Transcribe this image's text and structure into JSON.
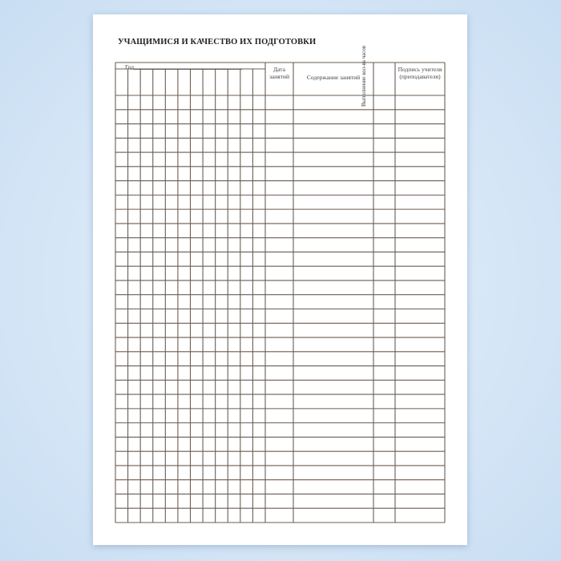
{
  "document": {
    "title": "УЧАЩИМИСЯ И КАЧЕСТВО ИХ ПОДГОТОВКИ",
    "table": {
      "year_label": "Год",
      "columns": {
        "date": "Дата занятий",
        "content": "Содержание занятий",
        "hours": "Выполнение кол-ва часов",
        "signature": "Подпись учителя (преподавателя)"
      },
      "student_columns": 12,
      "rows": 30
    }
  },
  "colors": {
    "grid": "#6b5d52",
    "background": "#cfe2f5"
  }
}
